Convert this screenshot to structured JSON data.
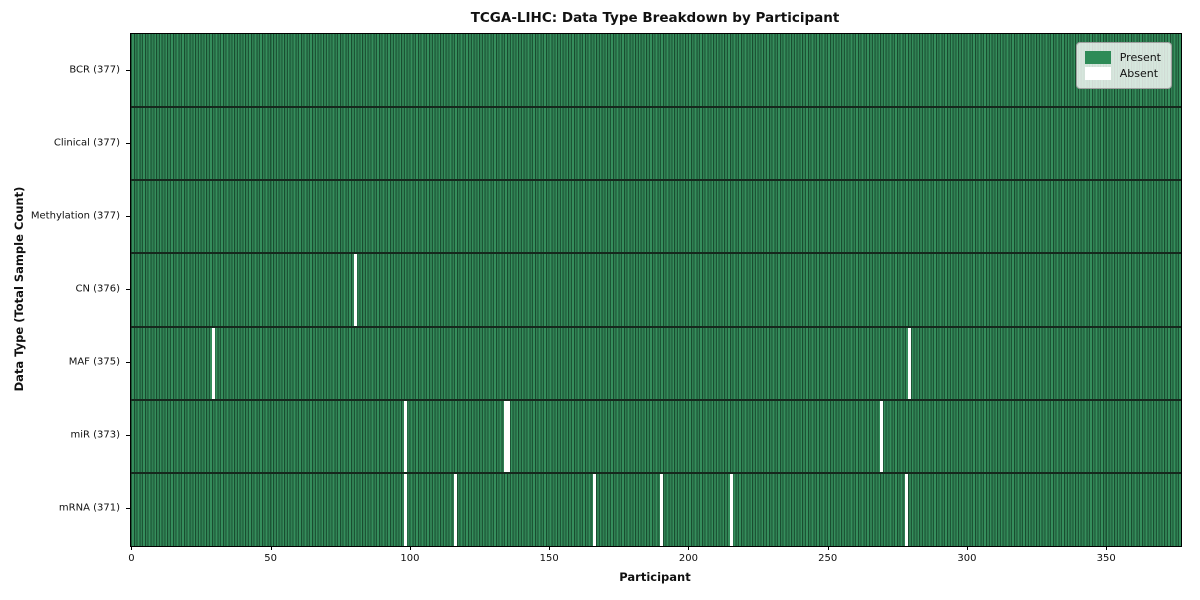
{
  "chart_data": {
    "type": "heatmap",
    "title": "TCGA-LIHC: Data Type Breakdown by Participant",
    "xlabel": "Participant",
    "ylabel": "Data Type (Total Sample Count)",
    "n_participants": 377,
    "xlim": [
      -0.5,
      376.5
    ],
    "x_ticks": [
      0,
      50,
      100,
      150,
      200,
      250,
      300,
      350
    ],
    "grid": "cell-edges",
    "legend_position": "upper right",
    "legend": [
      {
        "label": "Present",
        "color": "#2e8b57"
      },
      {
        "label": "Absent",
        "color": "#ffffff"
      }
    ],
    "rows": [
      {
        "label": "BCR (377)",
        "data_type": "BCR",
        "total": 377,
        "absent_participants": []
      },
      {
        "label": "Clinical (377)",
        "data_type": "Clinical",
        "total": 377,
        "absent_participants": []
      },
      {
        "label": "Methylation (377)",
        "data_type": "Methylation",
        "total": 377,
        "absent_participants": []
      },
      {
        "label": "CN (376)",
        "data_type": "CN",
        "total": 376,
        "absent_participants": [
          80
        ]
      },
      {
        "label": "MAF (375)",
        "data_type": "MAF",
        "total": 375,
        "absent_participants": [
          29,
          279
        ]
      },
      {
        "label": "miR (373)",
        "data_type": "miR",
        "total": 373,
        "absent_participants": [
          98,
          134,
          135,
          269
        ]
      },
      {
        "label": "mRNA (371)",
        "data_type": "mRNA",
        "total": 371,
        "absent_participants": [
          98,
          116,
          166,
          190,
          215,
          278
        ]
      }
    ],
    "colors": {
      "present": "#2e8b57",
      "present_fill": "#358e5c",
      "cell_edge": "#1e5a3a",
      "row_divider": "#16281d",
      "absent": "#ffffff",
      "background": "#ffffff",
      "text": "#111111"
    }
  }
}
